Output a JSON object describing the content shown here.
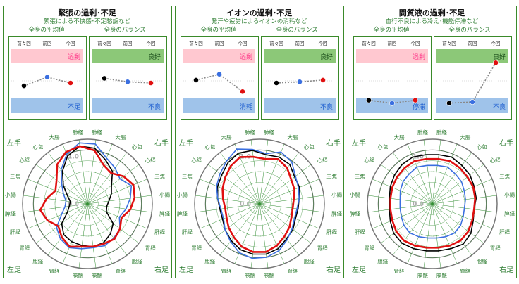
{
  "colors": {
    "frame": "#3a8a2a",
    "accent": "#2e7d32",
    "grid": "#2e8b2e",
    "excess_fill": "#ffc8d0",
    "excess_text": "#ff3b8a",
    "good_fill": "#8cc878",
    "deficit_fill": "#9fc3ea",
    "deficit_text": "#1f5fd0",
    "series_prev2": "#000000",
    "series_prev": "#3a6fe0",
    "series_current": "#e01010"
  },
  "panels": [
    {
      "title": "緊張の過剰･不足",
      "subtitle": "緊張による不快感･不定愁訴など",
      "avg_label": "全身の平均値",
      "balance_label": "全身のバランス",
      "point_labels": [
        "前々回",
        "前回",
        "今回"
      ],
      "avg_top_label": "過剰",
      "avg_bottom_label": "不足",
      "balance_top_label": "良好",
      "balance_bottom_label": "不良",
      "avg_values": [
        0.45,
        0.6,
        0.5
      ],
      "balance_values": [
        0.58,
        0.52,
        0.5
      ],
      "corners": {
        "tl": "左手",
        "tr": "右手",
        "bl": "左足",
        "br": "右足"
      },
      "radar_ticks": [
        "1.0",
        "0.0"
      ],
      "chart_data": {
        "type": "radar",
        "axes": [
          "肺経",
          "大腸",
          "心包",
          "心経",
          "三焦",
          "小腸",
          "脾経",
          "肝経",
          "胃経",
          "胆経",
          "腎経",
          "膀胱",
          "膀胱",
          "腎経",
          "胆経",
          "胃経",
          "肝経",
          "脾経",
          "小腸",
          "三焦",
          "心経",
          "心包",
          "大腸",
          "肺経"
        ],
        "rmin": -1.5,
        "rmax": 1.5,
        "series": [
          {
            "values": [
              1.1,
              0.7,
              0.4,
              -0.1,
              -0.3,
              -0.5,
              -0.6,
              -0.55,
              0.0,
              0.25,
              0.45,
              0.5,
              0.45,
              0.4,
              0.3,
              0.0,
              -0.5,
              -0.65,
              -0.7,
              -0.5,
              -0.1,
              0.4,
              0.9,
              1.2
            ]
          },
          {
            "values": [
              1.3,
              0.8,
              0.6,
              0.4,
              0.7,
              0.5,
              0.3,
              0.1,
              0.4,
              0.5,
              0.6,
              0.55,
              0.6,
              0.7,
              0.55,
              0.3,
              -0.2,
              -0.45,
              -0.5,
              -0.3,
              0.0,
              0.5,
              1.0,
              1.35
            ]
          },
          {
            "values": [
              1.0,
              0.45,
              0.3,
              0.6,
              0.8,
              0.7,
              0.5,
              0.2,
              0.4,
              0.55,
              0.5,
              0.5,
              0.5,
              0.65,
              0.45,
              0.2,
              0.5,
              0.7,
              0.4,
              0.1,
              0.3,
              0.8,
              1.1,
              1.2
            ]
          }
        ]
      }
    },
    {
      "title": "イオンの過剰･不足",
      "subtitle": "発汗や疲労によるイオンの消耗など",
      "avg_label": "全身の平均値",
      "balance_label": "全身のバランス",
      "point_labels": [
        "前々回",
        "前回",
        "今回"
      ],
      "avg_top_label": "過剰",
      "avg_bottom_label": "消耗",
      "balance_top_label": "良好",
      "balance_bottom_label": "不良",
      "avg_values": [
        0.55,
        0.65,
        0.35
      ],
      "balance_values": [
        0.5,
        0.52,
        0.55
      ],
      "corners": {
        "tl": "左手",
        "tr": "右手",
        "bl": "左足",
        "br": "右足"
      },
      "radar_ticks": [
        "1.0",
        "0.0"
      ],
      "chart_data": {
        "type": "radar",
        "axes": [
          "肺経",
          "大腸",
          "心包",
          "心経",
          "三焦",
          "小腸",
          "脾経",
          "肝経",
          "胃経",
          "胆経",
          "腎経",
          "膀胱",
          "膀胱",
          "腎経",
          "胆経",
          "胃経",
          "肝経",
          "脾経",
          "小腸",
          "三焦",
          "心経",
          "心包",
          "大腸",
          "肺経"
        ],
        "rmin": -1.5,
        "rmax": 1.5,
        "series": [
          {
            "values": [
              0.8,
              0.85,
              0.8,
              0.55,
              0.5,
              0.35,
              0.3,
              0.3,
              0.45,
              0.55,
              0.75,
              0.85,
              0.85,
              0.8,
              0.65,
              0.5,
              0.35,
              0.35,
              0.45,
              0.6,
              0.7,
              0.9,
              1.05,
              1.0
            ]
          },
          {
            "values": [
              0.85,
              1.1,
              0.95,
              0.6,
              0.45,
              0.35,
              0.25,
              0.25,
              0.4,
              0.6,
              0.85,
              1.0,
              1.05,
              0.95,
              0.7,
              0.5,
              0.3,
              0.3,
              0.45,
              0.65,
              0.8,
              1.0,
              1.25,
              1.05
            ]
          },
          {
            "values": [
              0.6,
              0.75,
              0.6,
              0.35,
              0.25,
              0.1,
              0.05,
              0.1,
              0.25,
              0.4,
              0.6,
              0.75,
              0.75,
              0.65,
              0.45,
              0.3,
              0.15,
              0.1,
              0.2,
              0.35,
              0.5,
              0.7,
              0.85,
              0.7
            ]
          }
        ]
      }
    },
    {
      "title": "間質液の過剰･不足",
      "subtitle": "血行不良による冷え･機能停滞など",
      "avg_label": "全身の平均値",
      "balance_label": "全身のバランス",
      "point_labels": [
        "前々回",
        "前回",
        "今回"
      ],
      "avg_top_label": "過剰",
      "avg_bottom_label": "停滞",
      "balance_top_label": "良好",
      "balance_bottom_label": "不良",
      "avg_values": [
        0.2,
        0.15,
        0.2
      ],
      "balance_values": [
        0.15,
        0.17,
        0.85
      ],
      "corners": {
        "tl": "左手",
        "tr": "右手",
        "bl": "左足",
        "br": "右足"
      },
      "radar_ticks": [
        "1.0",
        "0.0"
      ],
      "chart_data": {
        "type": "radar",
        "axes": [
          "肺経",
          "大腸",
          "心包",
          "心経",
          "三焦",
          "小腸",
          "脾経",
          "肝経",
          "胃経",
          "胆経",
          "腎経",
          "膀胱",
          "膀胱",
          "腎経",
          "胆経",
          "胃経",
          "肝経",
          "脾経",
          "小腸",
          "三焦",
          "心経",
          "心包",
          "大腸",
          "肺経"
        ],
        "rmin": -1.5,
        "rmax": 1.5,
        "series": [
          {
            "values": [
              0.8,
              0.85,
              0.75,
              0.7,
              0.6,
              0.55,
              0.45,
              0.55,
              0.75,
              0.85,
              0.75,
              0.7,
              0.7,
              0.75,
              0.8,
              0.75,
              0.6,
              0.5,
              0.5,
              0.6,
              0.7,
              0.8,
              0.85,
              0.8
            ]
          },
          {
            "values": [
              0.3,
              0.35,
              0.25,
              0.2,
              0.1,
              0.05,
              0.0,
              0.05,
              0.15,
              0.2,
              0.15,
              0.1,
              0.1,
              0.15,
              0.2,
              0.15,
              0.05,
              0.0,
              0.0,
              0.1,
              0.2,
              0.25,
              0.35,
              0.3
            ]
          },
          {
            "values": [
              0.6,
              0.65,
              0.6,
              0.55,
              0.55,
              0.5,
              0.45,
              0.5,
              0.6,
              0.65,
              0.6,
              0.55,
              0.55,
              0.6,
              0.65,
              0.6,
              0.5,
              0.45,
              0.45,
              0.5,
              0.55,
              0.6,
              0.65,
              0.6
            ]
          }
        ]
      }
    }
  ]
}
